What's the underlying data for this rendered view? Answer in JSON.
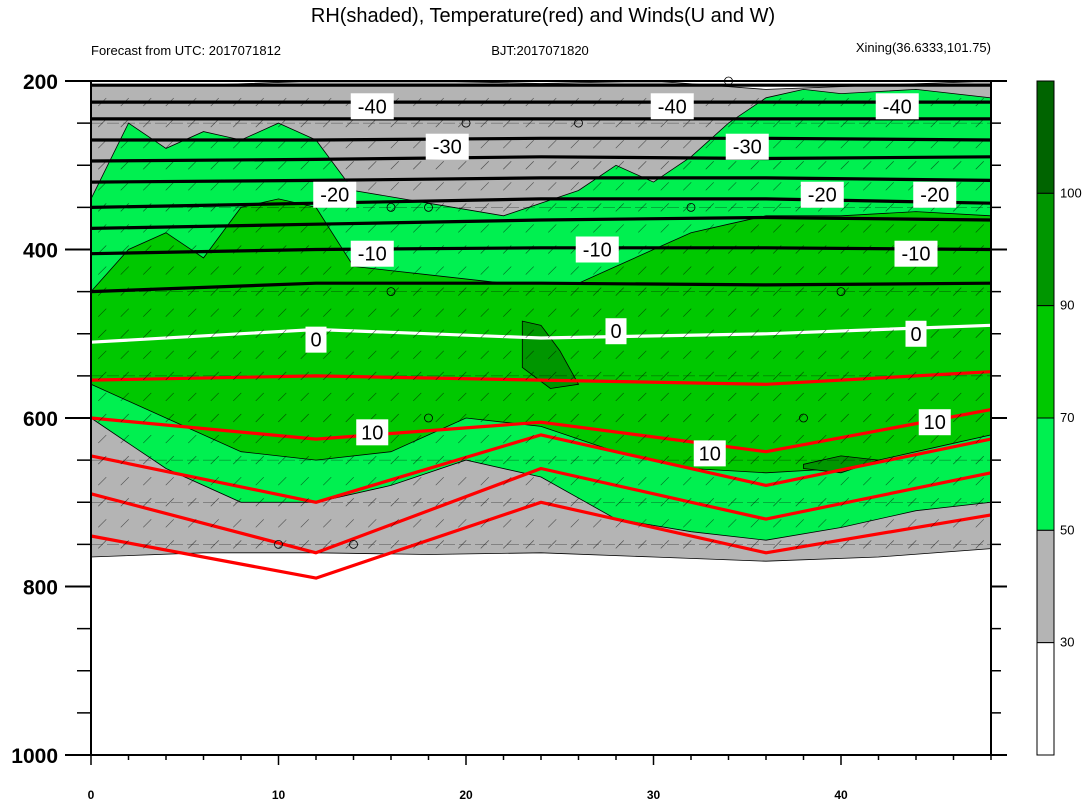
{
  "chart_data": {
    "type": "heatmap",
    "title": "RH(shaded), Temperature(red) and Winds(U and W)",
    "subtitle_left": "Forecast from UTC: 2017071812",
    "subtitle_center": "BJT:2017071820",
    "subtitle_right": "Xining(36.6333,101.75)",
    "xlim": [
      0,
      48
    ],
    "ylim": [
      1000,
      200
    ],
    "x_ticks": [
      "0",
      "10",
      "20",
      "30",
      "40"
    ],
    "x_tick_values": [
      0,
      10,
      20,
      30,
      40
    ],
    "y_ticks": [
      "200",
      "400",
      "600",
      "800",
      "1000"
    ],
    "y_tick_values": [
      200,
      400,
      600,
      800,
      1000
    ],
    "colorbar": {
      "levels": [
        "30",
        "50",
        "70",
        "90",
        "100"
      ],
      "colors": [
        "#ffffff",
        "#b4b4b4",
        "#00f050",
        "#00c800",
        "#009600",
        "#006400"
      ]
    },
    "rh_bands": [
      {
        "level": 30,
        "color": "#b4b4b4",
        "top": [
          [
            0,
            205
          ],
          [
            6,
            205
          ],
          [
            12,
            200
          ],
          [
            18,
            200
          ],
          [
            24,
            203
          ],
          [
            30,
            200
          ],
          [
            36,
            210
          ],
          [
            42,
            205
          ],
          [
            48,
            200
          ]
        ],
        "bottom": [
          [
            0,
            765
          ],
          [
            6,
            760
          ],
          [
            12,
            760
          ],
          [
            18,
            762
          ],
          [
            24,
            760
          ],
          [
            30,
            765
          ],
          [
            36,
            770
          ],
          [
            42,
            765
          ],
          [
            48,
            755
          ]
        ]
      },
      {
        "level": 50,
        "color": "#00f050",
        "top": [
          [
            0,
            340
          ],
          [
            2,
            250
          ],
          [
            4,
            280
          ],
          [
            6,
            260
          ],
          [
            8,
            270
          ],
          [
            10,
            250
          ],
          [
            12,
            270
          ],
          [
            14,
            330
          ],
          [
            18,
            345
          ],
          [
            22,
            360
          ],
          [
            26,
            330
          ],
          [
            28,
            300
          ],
          [
            30,
            320
          ],
          [
            32,
            290
          ],
          [
            34,
            250
          ],
          [
            36,
            220
          ],
          [
            38,
            210
          ],
          [
            40,
            215
          ],
          [
            44,
            210
          ],
          [
            48,
            220
          ],
          [
            48,
            330
          ]
        ],
        "bottom": [
          [
            0,
            600
          ],
          [
            2,
            630
          ],
          [
            4,
            660
          ],
          [
            8,
            700
          ],
          [
            12,
            700
          ],
          [
            16,
            680
          ],
          [
            20,
            650
          ],
          [
            24,
            670
          ],
          [
            28,
            720
          ],
          [
            32,
            735
          ],
          [
            36,
            745
          ],
          [
            40,
            730
          ],
          [
            44,
            710
          ],
          [
            48,
            700
          ]
        ]
      },
      {
        "level": 70,
        "color": "#00c800",
        "top": [
          [
            0,
            450
          ],
          [
            2,
            400
          ],
          [
            4,
            380
          ],
          [
            6,
            410
          ],
          [
            8,
            350
          ],
          [
            10,
            340
          ],
          [
            12,
            350
          ],
          [
            14,
            420
          ],
          [
            18,
            430
          ],
          [
            22,
            440
          ],
          [
            26,
            440
          ],
          [
            28,
            420
          ],
          [
            30,
            400
          ],
          [
            32,
            380
          ],
          [
            34,
            370
          ],
          [
            36,
            360
          ],
          [
            40,
            360
          ],
          [
            44,
            355
          ],
          [
            48,
            360
          ]
        ],
        "bottom": [
          [
            0,
            560
          ],
          [
            4,
            600
          ],
          [
            8,
            640
          ],
          [
            12,
            650
          ],
          [
            16,
            640
          ],
          [
            20,
            600
          ],
          [
            24,
            610
          ],
          [
            28,
            640
          ],
          [
            32,
            660
          ],
          [
            36,
            665
          ],
          [
            40,
            660
          ],
          [
            44,
            640
          ],
          [
            48,
            620
          ]
        ]
      },
      {
        "level": 90,
        "color": "#009600",
        "top": [
          [
            23,
            485
          ],
          [
            24,
            490
          ],
          [
            25,
            520
          ],
          [
            26,
            560
          ],
          [
            24.5,
            565
          ],
          [
            23,
            540
          ]
        ],
        "bottom": []
      },
      {
        "level": 90,
        "color": "#009600",
        "top": [
          [
            38,
            655
          ],
          [
            40,
            645
          ],
          [
            42,
            650
          ],
          [
            40,
            665
          ],
          [
            38,
            660
          ]
        ],
        "bottom": []
      }
    ],
    "temperature_contours": [
      {
        "value": -40,
        "color": "#000000",
        "y": [
          205,
          205,
          205,
          205,
          205
        ]
      },
      {
        "value": -40,
        "color": "#000000",
        "y": [
          225,
          225,
          225,
          225,
          225
        ]
      },
      {
        "value": -30,
        "color": "#000000",
        "y": [
          245,
          245,
          245,
          245,
          245
        ]
      },
      {
        "value": -30,
        "color": "#000000",
        "y": [
          270,
          270,
          268,
          268,
          270
        ]
      },
      {
        "value": -30,
        "color": "#000000",
        "y": [
          295,
          293,
          290,
          292,
          290
        ]
      },
      {
        "value": -20,
        "color": "#000000",
        "y": [
          320,
          318,
          315,
          315,
          318
        ]
      },
      {
        "value": -20,
        "color": "#000000",
        "y": [
          350,
          345,
          340,
          340,
          345
        ]
      },
      {
        "value": -10,
        "color": "#000000",
        "y": [
          375,
          370,
          365,
          362,
          365
        ]
      },
      {
        "value": -10,
        "color": "#000000",
        "y": [
          405,
          400,
          398,
          398,
          400
        ]
      },
      {
        "value": -10,
        "color": "#000000",
        "y": [
          450,
          440,
          440,
          442,
          440
        ]
      },
      {
        "value": 0,
        "color": "#ffffff",
        "y": [
          510,
          495,
          505,
          500,
          490
        ]
      },
      {
        "value": 10,
        "color": "#ff0000",
        "y": [
          555,
          550,
          555,
          560,
          545
        ]
      },
      {
        "value": 10,
        "color": "#ff0000",
        "y": [
          600,
          625,
          605,
          640,
          590
        ]
      },
      {
        "value": 10,
        "color": "#ff0000",
        "y": [
          645,
          700,
          620,
          680,
          625
        ]
      },
      {
        "value": 10,
        "color": "#ff0000",
        "y": [
          690,
          760,
          660,
          720,
          665
        ]
      },
      {
        "value": 10,
        "color": "#ff0000",
        "y": [
          740,
          790,
          700,
          760,
          715
        ]
      }
    ],
    "contour_labels": [
      {
        "text": "-40",
        "x": 15,
        "y": 230
      },
      {
        "text": "-40",
        "x": 31,
        "y": 230
      },
      {
        "text": "-40",
        "x": 43,
        "y": 230
      },
      {
        "text": "-30",
        "x": 19,
        "y": 278
      },
      {
        "text": "-30",
        "x": 35,
        "y": 278
      },
      {
        "text": "-20",
        "x": 13,
        "y": 335
      },
      {
        "text": "-20",
        "x": 39,
        "y": 335
      },
      {
        "text": "-20",
        "x": 45,
        "y": 335
      },
      {
        "text": "-10",
        "x": 15,
        "y": 405
      },
      {
        "text": "-10",
        "x": 27,
        "y": 400
      },
      {
        "text": "-10",
        "x": 44,
        "y": 405
      },
      {
        "text": "0",
        "x": 12,
        "y": 507
      },
      {
        "text": "0",
        "x": 28,
        "y": 497
      },
      {
        "text": "0",
        "x": 44,
        "y": 500
      },
      {
        "text": "10",
        "x": 15,
        "y": 617
      },
      {
        "text": "10",
        "x": 33,
        "y": 642
      },
      {
        "text": "10",
        "x": 45,
        "y": 605
      }
    ]
  }
}
